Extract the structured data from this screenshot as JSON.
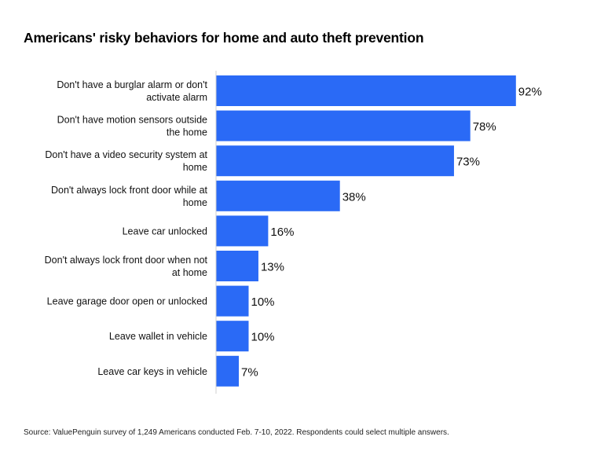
{
  "chart_data": {
    "type": "bar",
    "orientation": "horizontal",
    "title": "Americans' risky behaviors for home and auto theft prevention",
    "categories": [
      [
        "Don't have a burglar alarm or don't",
        "activate alarm"
      ],
      [
        "Don't have motion sensors outside",
        "the home"
      ],
      [
        "Don't have a video security system at",
        "home"
      ],
      [
        "Don't always lock front door while at",
        "home"
      ],
      [
        "Leave car unlocked"
      ],
      [
        "Don't always lock front door when not",
        "at home"
      ],
      [
        "Leave garage door open or unlocked"
      ],
      [
        "Leave wallet in vehicle"
      ],
      [
        "Leave car keys in vehicle"
      ]
    ],
    "values": [
      92,
      78,
      73,
      38,
      16,
      13,
      10,
      10,
      7
    ],
    "value_labels": [
      "92%",
      "78%",
      "73%",
      "38%",
      "16%",
      "13%",
      "10%",
      "10%",
      "7%"
    ],
    "xlim": [
      0,
      100
    ],
    "grid": false,
    "bar_color": "#2a6af6"
  },
  "source": "Source: ValuePenguin survey of 1,249 Americans conducted Feb. 7-10, 2022. Respondents could select multiple answers."
}
